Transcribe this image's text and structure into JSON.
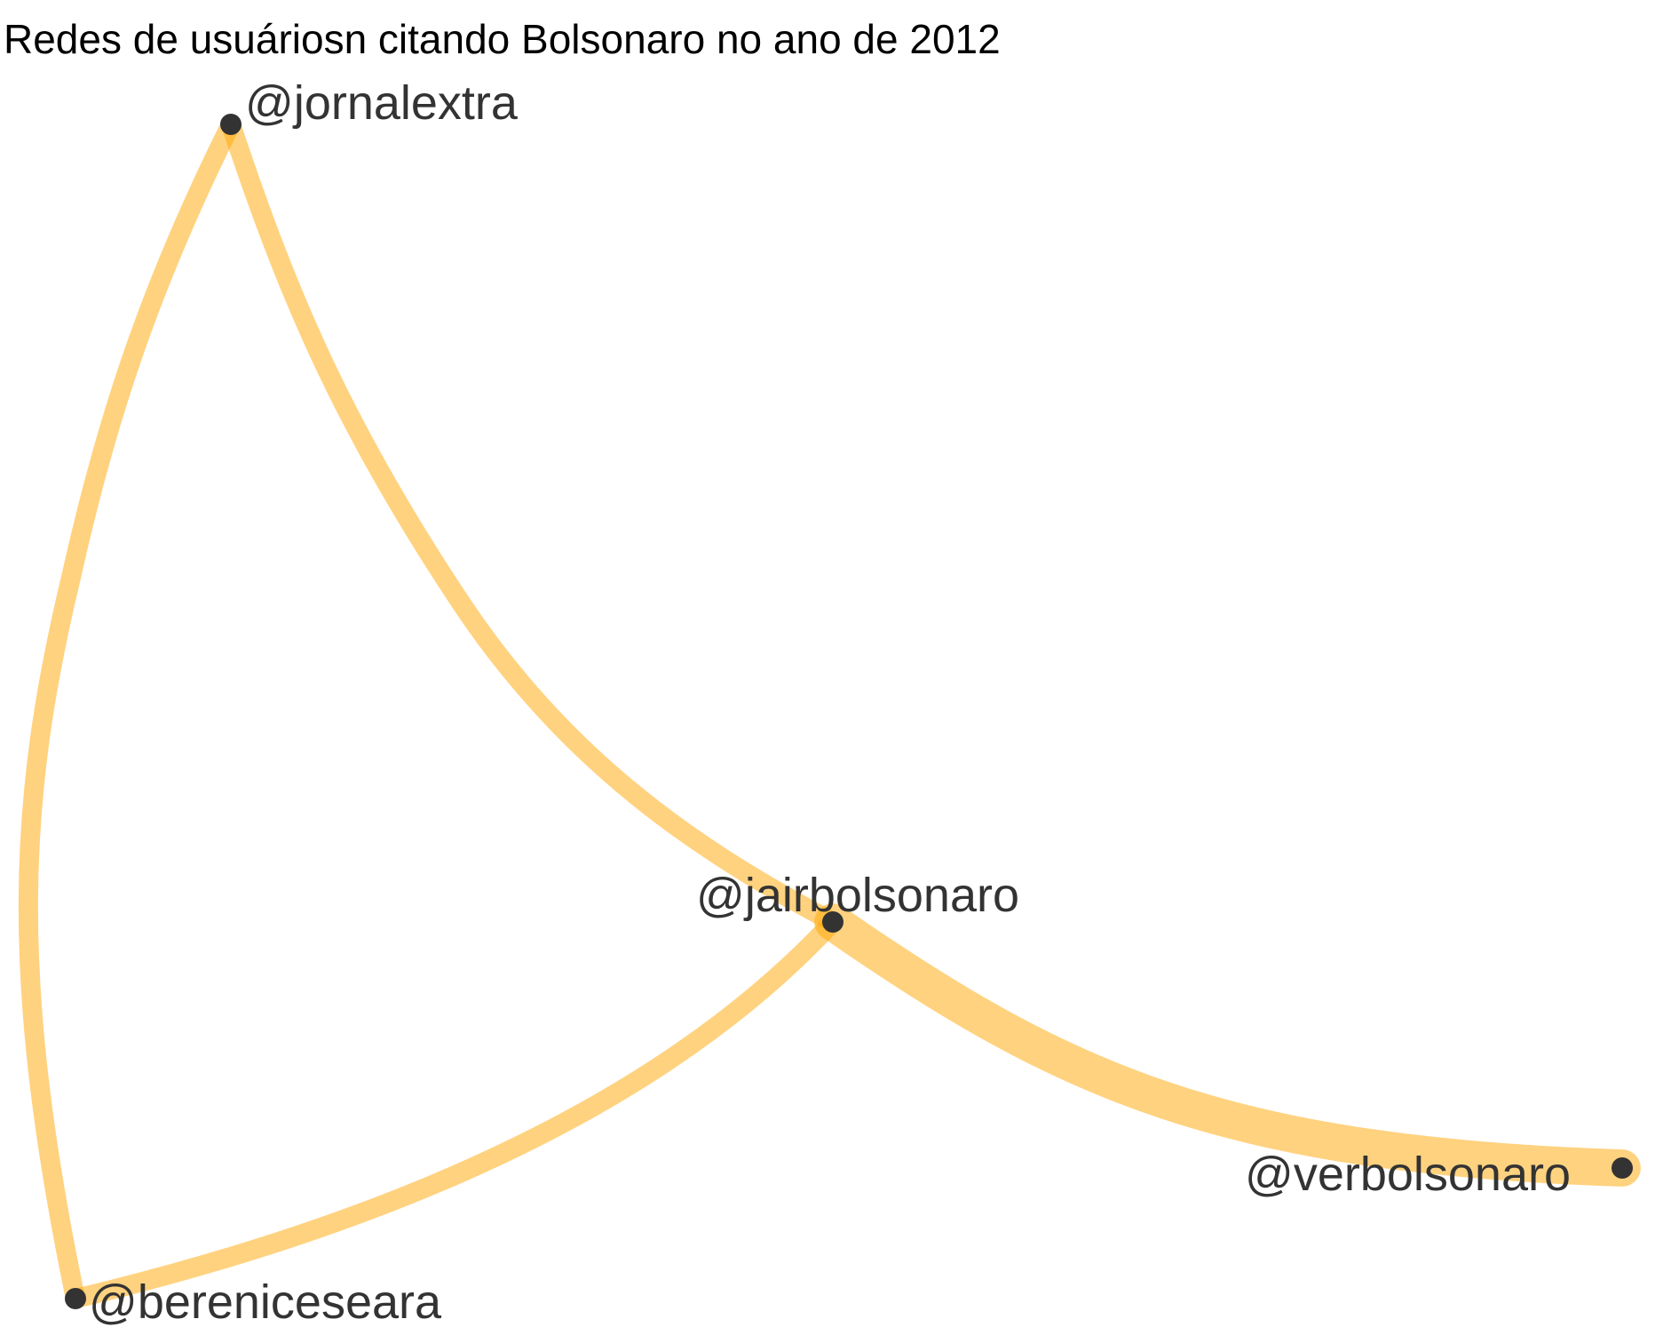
{
  "title": "Redes de usuáriosn citando Bolsonaro no ano de 2012",
  "colors": {
    "edge": "#ffa500",
    "edge_opacity": 0.5,
    "node": "#333333",
    "label": "#333333",
    "title": "#000000",
    "background": "#ffffff"
  },
  "nodes": [
    {
      "id": "jornalextra",
      "label": "@jornalextra"
    },
    {
      "id": "jairbolsonaro",
      "label": "@jairbolsonaro"
    },
    {
      "id": "verbolsonaro",
      "label": "@verbolsonaro"
    },
    {
      "id": "berenice",
      "label": "@bereniceseara"
    }
  ],
  "edges": [
    {
      "source": "jornalextra",
      "target": "jairbolsonaro",
      "weight": 1
    },
    {
      "source": "jornalextra",
      "target": "berenice",
      "weight": 1
    },
    {
      "source": "jairbolsonaro",
      "target": "berenice",
      "weight": 1
    },
    {
      "source": "jairbolsonaro",
      "target": "verbolsonaro",
      "weight": 3
    }
  ]
}
